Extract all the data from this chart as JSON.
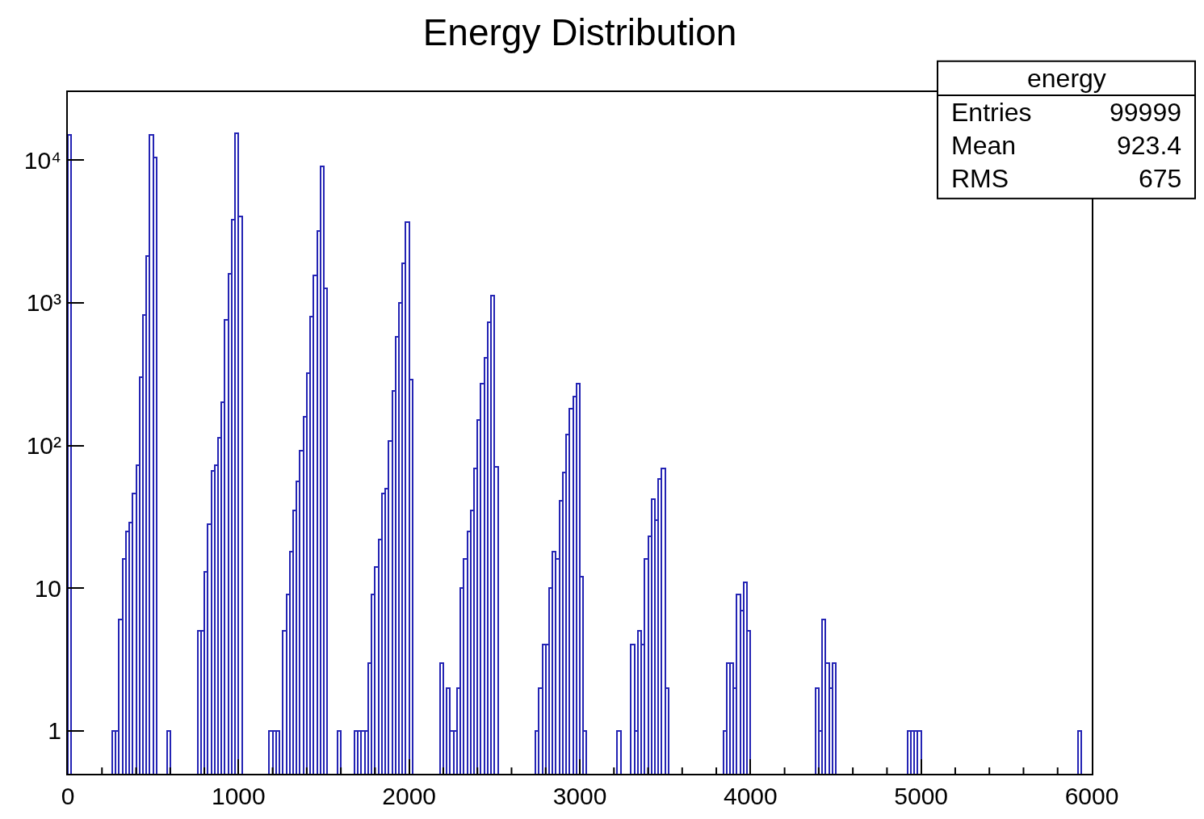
{
  "chart_data": {
    "type": "histogram",
    "title": "Energy Distribution",
    "bins": [
      0,
      20,
      40,
      60,
      80,
      100,
      120,
      140,
      160,
      180,
      200,
      220,
      240,
      260,
      280,
      300,
      320,
      340,
      360,
      380,
      400,
      420,
      440,
      460,
      480,
      500,
      520,
      540,
      560,
      580,
      600,
      620,
      640,
      660,
      680,
      700,
      720,
      740,
      760,
      780,
      800,
      820,
      840,
      860,
      880,
      900,
      920,
      940,
      960,
      980,
      1000,
      1020,
      1040,
      1060,
      1080,
      1100,
      1120,
      1140,
      1160,
      1180,
      1200,
      1220,
      1240,
      1260,
      1280,
      1300,
      1320,
      1340,
      1360,
      1380,
      1400,
      1420,
      1440,
      1460,
      1480,
      1500,
      1520,
      1540,
      1560,
      1580,
      1600,
      1620,
      1640,
      1660,
      1680,
      1700,
      1720,
      1740,
      1760,
      1780,
      1800,
      1820,
      1840,
      1860,
      1880,
      1900,
      1920,
      1940,
      1960,
      1980,
      2000,
      2020,
      2040,
      2060,
      2080,
      2100,
      2120,
      2140,
      2160,
      2180,
      2200,
      2220,
      2240,
      2260,
      2280,
      2300,
      2320,
      2340,
      2360,
      2380,
      2400,
      2420,
      2440,
      2460,
      2480,
      2500,
      2520,
      2540,
      2560,
      2580,
      2600,
      2620,
      2640,
      2660,
      2680,
      2700,
      2720,
      2740,
      2760,
      2780,
      2800,
      2820,
      2840,
      2860,
      2880,
      2900,
      2920,
      2940,
      2960,
      2980,
      3000,
      3020,
      3040,
      3060,
      3080,
      3100,
      3120,
      3140,
      3160,
      3180,
      3200,
      3220,
      3240,
      3260,
      3280,
      3300,
      3320,
      3340,
      3360,
      3380,
      3400,
      3420,
      3440,
      3460,
      3480,
      3500,
      3520,
      3540,
      3560,
      3580,
      3600,
      3620,
      3640,
      3660,
      3680,
      3700,
      3720,
      3740,
      3760,
      3780,
      3800,
      3820,
      3840,
      3860,
      3880,
      3900,
      3920,
      3940,
      3960,
      3980,
      4000,
      4020,
      4040,
      4060,
      4080,
      4100,
      4120,
      4140,
      4160,
      4180,
      4200,
      4220,
      4240,
      4260,
      4280,
      4300,
      4320,
      4340,
      4360,
      4380,
      4400,
      4420,
      4440,
      4460,
      4480,
      4500,
      4520,
      4540,
      4560,
      4580,
      4600,
      4620,
      4640,
      4660,
      4680,
      4700,
      4720,
      4740,
      4760,
      4780,
      4800,
      4820,
      4840,
      4860,
      4880,
      4900,
      4920,
      4940,
      4960,
      4980,
      5000,
      5020,
      5040,
      5060,
      5080,
      5100,
      5120,
      5140,
      5160,
      5180,
      5200,
      5220,
      5240,
      5260,
      5280,
      5300,
      5320,
      5340,
      5360,
      5380,
      5400,
      5420,
      5440,
      5460,
      5480,
      5500,
      5520,
      5540,
      5560,
      5580,
      5600,
      5620,
      5640,
      5660,
      5680,
      5700,
      5720,
      5740,
      5760,
      5780,
      5800,
      5820,
      5840,
      5860,
      5880,
      5900,
      5920,
      5940,
      5960,
      5980,
      6000
    ],
    "values": [
      15000,
      null,
      null,
      null,
      null,
      null,
      null,
      null,
      null,
      null,
      null,
      null,
      null,
      1,
      1,
      6,
      16,
      25,
      29,
      46,
      73,
      300,
      820,
      2130,
      15000,
      10500,
      null,
      null,
      null,
      1,
      null,
      null,
      null,
      null,
      null,
      null,
      null,
      null,
      5,
      5,
      13,
      28,
      66,
      73,
      114,
      200,
      760,
      1600,
      3850,
      15500,
      4050,
      null,
      null,
      null,
      null,
      null,
      null,
      null,
      null,
      1,
      1,
      1,
      null,
      5,
      9,
      18,
      35,
      56,
      92,
      160,
      320,
      800,
      1560,
      3200,
      9100,
      1260,
      null,
      null,
      null,
      1,
      null,
      null,
      null,
      null,
      1,
      1,
      1,
      1,
      3,
      9,
      14,
      22,
      46,
      50,
      108,
      240,
      580,
      1000,
      1880,
      3670,
      290,
      null,
      null,
      null,
      null,
      null,
      null,
      null,
      null,
      3,
      null,
      2,
      1,
      1,
      2,
      10,
      16,
      25,
      35,
      69,
      150,
      270,
      410,
      730,
      1120,
      71,
      null,
      null,
      null,
      null,
      null,
      null,
      null,
      null,
      null,
      null,
      null,
      1,
      2,
      4,
      4,
      10,
      18,
      16,
      41,
      65,
      120,
      180,
      220,
      273,
      12,
      1,
      null,
      null,
      null,
      null,
      null,
      null,
      null,
      null,
      null,
      1,
      null,
      null,
      null,
      4,
      1,
      5,
      4,
      16,
      23,
      42,
      30,
      58,
      69,
      2,
      null,
      null,
      null,
      null,
      null,
      null,
      null,
      null,
      null,
      null,
      null,
      null,
      null,
      null,
      null,
      null,
      1,
      3,
      3,
      2,
      9,
      7,
      11,
      5,
      null,
      null,
      null,
      null,
      null,
      null,
      null,
      null,
      null,
      null,
      null,
      null,
      null,
      null,
      null,
      null,
      null,
      null,
      null,
      2,
      1,
      6,
      3,
      2,
      3,
      null,
      null,
      null,
      null,
      null,
      null,
      null,
      null,
      null,
      null,
      null,
      null,
      null,
      null,
      null,
      null,
      null,
      null,
      null,
      null,
      null,
      1,
      1,
      1,
      1,
      null,
      null,
      null,
      null,
      null,
      null,
      null,
      null,
      null,
      null,
      null,
      null,
      null,
      null,
      null,
      null,
      null,
      null,
      null,
      null,
      null,
      null,
      null,
      null,
      null,
      null,
      null,
      null,
      null,
      null,
      null,
      null,
      null,
      null,
      null,
      null,
      null,
      null,
      null,
      null,
      null,
      null,
      null,
      null,
      null,
      null,
      1,
      null,
      null,
      null
    ],
    "color": "#2424b4",
    "log": "y",
    "xlim": [
      0,
      6000
    ],
    "xticks": [
      0,
      {
        "value": 200,
        "label": null
      },
      {
        "value": 400,
        "label": null
      },
      {
        "value": 600,
        "label": null
      },
      {
        "value": 800,
        "label": null
      },
      1000,
      {
        "value": 1200,
        "label": null
      },
      {
        "value": 1400,
        "label": null
      },
      {
        "value": 1600,
        "label": null
      },
      {
        "value": 1800,
        "label": null
      },
      2000,
      {
        "value": 2200,
        "label": null
      },
      {
        "value": 2400,
        "label": null
      },
      {
        "value": 2600,
        "label": null
      },
      {
        "value": 2800,
        "label": null
      },
      3000,
      {
        "value": 3200,
        "label": null
      },
      {
        "value": 3400,
        "label": null
      },
      {
        "value": 3600,
        "label": null
      },
      {
        "value": 3800,
        "label": null
      },
      4000,
      {
        "value": 4200,
        "label": null
      },
      {
        "value": 4400,
        "label": null
      },
      {
        "value": 4600,
        "label": null
      },
      {
        "value": 4800,
        "label": null
      },
      5000,
      {
        "value": 5200,
        "label": null
      },
      {
        "value": 5400,
        "label": null
      },
      {
        "value": 5600,
        "label": null
      },
      {
        "value": 5800,
        "label": null
      },
      6000
    ],
    "ylim": [
      0.5,
      30000
    ],
    "yticks": [
      1,
      10,
      {
        "value": 100,
        "label": "10²"
      },
      {
        "value": 1000,
        "label": "10³"
      },
      {
        "value": 10000,
        "label": "10⁴"
      }
    ],
    "annotations": [
      "energy",
      "Entries",
      "99999",
      "Mean",
      "923.4",
      "RMS",
      "675"
    ]
  }
}
